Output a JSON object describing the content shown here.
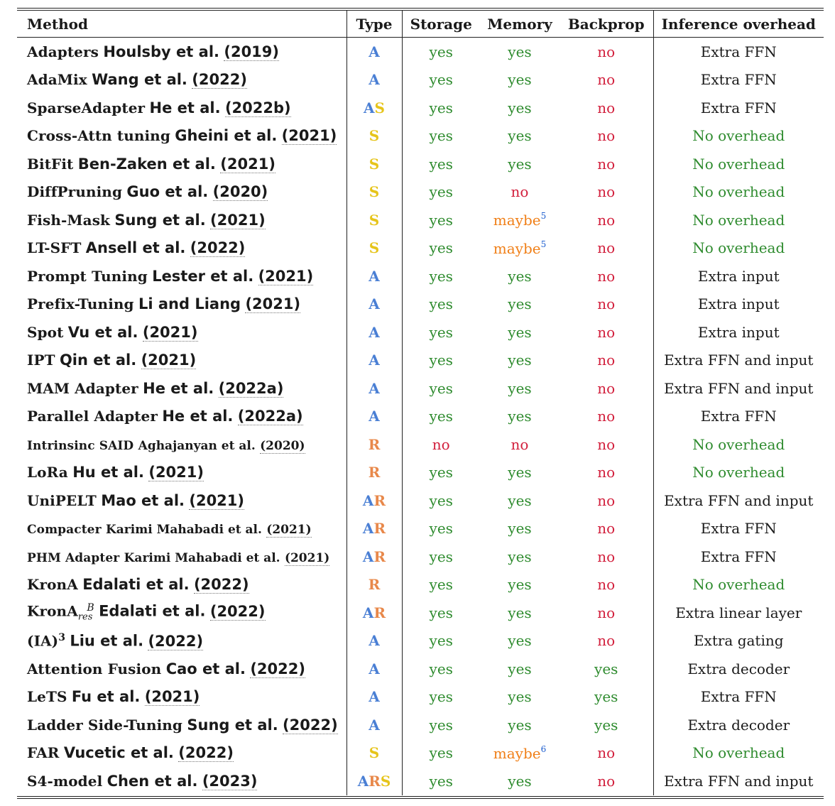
{
  "headers": {
    "method": "Method",
    "type": "Type",
    "storage": "Storage",
    "memory": "Memory",
    "backprop": "Backprop",
    "inference": "Inference overhead"
  },
  "type_colors": {
    "A": "#4a7fd4",
    "S": "#e6c41a",
    "R": "#e8884a"
  },
  "value_colors": {
    "yes": "#2e8b2e",
    "no": "#d21f3c",
    "maybe": "#f07f17",
    "no_overhead": "#2e8b2e",
    "footnote": "#1f5fcf"
  },
  "rows": [
    {
      "method": "Adapters",
      "cite": "Houlsby et al.",
      "year": "(2019)",
      "type": "A",
      "storage": "yes",
      "memory": "yes",
      "backprop": "no",
      "inference": "Extra FFN"
    },
    {
      "method": "AdaMix",
      "cite": "Wang et al.",
      "year": "(2022)",
      "type": "A",
      "storage": "yes",
      "memory": "yes",
      "backprop": "no",
      "inference": "Extra FFN"
    },
    {
      "method": "SparseAdapter",
      "cite": "He et al.",
      "year": "(2022b)",
      "type": "AS",
      "storage": "yes",
      "memory": "yes",
      "backprop": "no",
      "inference": "Extra FFN"
    },
    {
      "method": "Cross-Attn tuning",
      "cite": "Gheini et al.",
      "year": "(2021)",
      "type": "S",
      "storage": "yes",
      "memory": "yes",
      "backprop": "no",
      "inference": "No overhead"
    },
    {
      "method": "BitFit",
      "cite": "Ben-Zaken et al.",
      "year": "(2021)",
      "type": "S",
      "storage": "yes",
      "memory": "yes",
      "backprop": "no",
      "inference": "No overhead"
    },
    {
      "method": "DiffPruning",
      "cite": "Guo et al.",
      "year": "(2020)",
      "type": "S",
      "storage": "yes",
      "memory": "no",
      "backprop": "no",
      "inference": "No overhead"
    },
    {
      "method": "Fish-Mask",
      "cite": "Sung et al.",
      "year": "(2021)",
      "type": "S",
      "storage": "yes",
      "memory": "maybe",
      "memory_fn": "5",
      "backprop": "no",
      "inference": "No overhead"
    },
    {
      "method": "LT-SFT",
      "cite": "Ansell et al.",
      "year": "(2022)",
      "type": "S",
      "storage": "yes",
      "memory": "maybe",
      "memory_fn": "5",
      "backprop": "no",
      "inference": "No overhead"
    },
    {
      "method": "Prompt Tuning",
      "cite": "Lester et al.",
      "year": "(2021)",
      "type": "A",
      "storage": "yes",
      "memory": "yes",
      "backprop": "no",
      "inference": "Extra input"
    },
    {
      "method": "Prefix-Tuning",
      "cite": "Li and Liang",
      "year": "(2021)",
      "type": "A",
      "storage": "yes",
      "memory": "yes",
      "backprop": "no",
      "inference": "Extra input"
    },
    {
      "method": "Spot",
      "cite": "Vu et al.",
      "year": "(2021)",
      "type": "A",
      "storage": "yes",
      "memory": "yes",
      "backprop": "no",
      "inference": "Extra input"
    },
    {
      "method": "IPT",
      "cite": "Qin et al.",
      "year": "(2021)",
      "type": "A",
      "storage": "yes",
      "memory": "yes",
      "backprop": "no",
      "inference": "Extra FFN and input"
    },
    {
      "method": "MAM Adapter",
      "cite": "He et al.",
      "year": "(2022a)",
      "type": "A",
      "storage": "yes",
      "memory": "yes",
      "backprop": "no",
      "inference": "Extra FFN and input"
    },
    {
      "method": "Parallel Adapter",
      "cite": "He et al.",
      "year": "(2022a)",
      "type": "A",
      "storage": "yes",
      "memory": "yes",
      "backprop": "no",
      "inference": "Extra FFN"
    },
    {
      "method": "Intrinsinc SAID",
      "cite": "Aghajanyan et al.",
      "year": "(2020)",
      "type": "R",
      "storage": "no",
      "memory": "no",
      "backprop": "no",
      "inference": "No overhead",
      "small": true
    },
    {
      "method": "LoRa",
      "cite": "Hu et al.",
      "year": "(2021)",
      "type": "R",
      "storage": "yes",
      "memory": "yes",
      "backprop": "no",
      "inference": "No overhead"
    },
    {
      "method": "UniPELT",
      "cite": "Mao et al.",
      "year": "(2021)",
      "type": "AR",
      "storage": "yes",
      "memory": "yes",
      "backprop": "no",
      "inference": "Extra FFN and input"
    },
    {
      "method": "Compacter",
      "cite": "Karimi Mahabadi et al.",
      "year": "(2021)",
      "type": "AR",
      "storage": "yes",
      "memory": "yes",
      "backprop": "no",
      "inference": "Extra FFN",
      "small": true
    },
    {
      "method": "PHM Adapter",
      "cite": "Karimi Mahabadi et al.",
      "year": "(2021)",
      "type": "AR",
      "storage": "yes",
      "memory": "yes",
      "backprop": "no",
      "inference": "Extra FFN",
      "small": true
    },
    {
      "method": "KronA",
      "cite": "Edalati et al.",
      "year": "(2022)",
      "type": "R",
      "storage": "yes",
      "memory": "yes",
      "backprop": "no",
      "inference": "No overhead"
    },
    {
      "method": "KronA",
      "method_sub": "res",
      "method_sup": "B",
      "cite": "Edalati et al.",
      "year": "(2022)",
      "type": "AR",
      "storage": "yes",
      "memory": "yes",
      "backprop": "no",
      "inference": "Extra linear layer"
    },
    {
      "method": "(IA)",
      "method_sup": "3",
      "cite": "Liu et al.",
      "year": "(2022)",
      "type": "A",
      "storage": "yes",
      "memory": "yes",
      "backprop": "no",
      "inference": "Extra gating"
    },
    {
      "method": "Attention Fusion",
      "cite": "Cao et al.",
      "year": "(2022)",
      "type": "A",
      "storage": "yes",
      "memory": "yes",
      "backprop": "yes",
      "inference": "Extra decoder"
    },
    {
      "method": "LeTS",
      "cite": "Fu et al.",
      "year": "(2021)",
      "type": "A",
      "storage": "yes",
      "memory": "yes",
      "backprop": "yes",
      "inference": "Extra FFN"
    },
    {
      "method": "Ladder Side-Tuning",
      "cite": "Sung et al.",
      "year": "(2022)",
      "type": "A",
      "storage": "yes",
      "memory": "yes",
      "backprop": "yes",
      "inference": "Extra decoder"
    },
    {
      "method": "FAR",
      "cite": "Vucetic et al.",
      "year": "(2022)",
      "type": "S",
      "storage": "yes",
      "memory": "maybe",
      "memory_fn": "6",
      "backprop": "no",
      "inference": "No overhead"
    },
    {
      "method": "S4-model",
      "cite": "Chen et al.",
      "year": "(2023)",
      "type": "ARS",
      "storage": "yes",
      "memory": "yes",
      "backprop": "no",
      "inference": "Extra FFN and input"
    }
  ]
}
